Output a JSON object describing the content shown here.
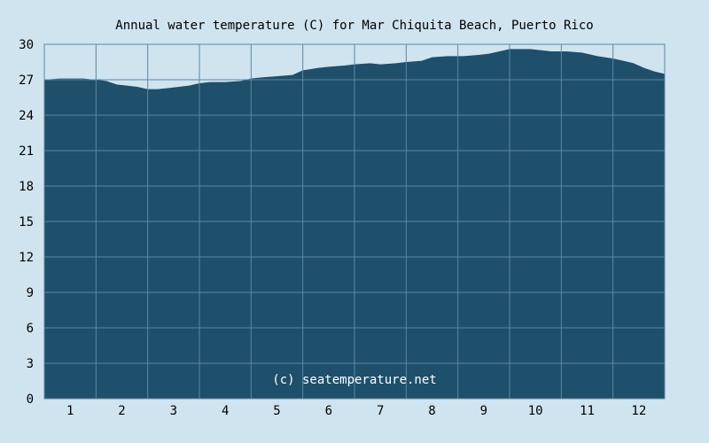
{
  "chart_data": {
    "type": "area",
    "title": "Annual water temperature (C) for Mar Chiquita Beach, Puerto Rico",
    "watermark": "(c) seatemperature.net",
    "xlabel": "",
    "ylabel": "",
    "x_ticks": [
      "1",
      "2",
      "3",
      "4",
      "5",
      "6",
      "7",
      "8",
      "9",
      "10",
      "11",
      "12"
    ],
    "y_ticks": [
      0,
      3,
      6,
      9,
      12,
      15,
      18,
      21,
      24,
      27,
      30
    ],
    "ylim": [
      0,
      30
    ],
    "xlim": [
      0.5,
      12.5
    ],
    "grid": true,
    "colors": {
      "background": "#cfe4ef",
      "fill": "#1e4f6b",
      "grid": "#5d87a1",
      "border": "#5d87a1"
    },
    "series": [
      {
        "x": [
          0.5,
          0.8,
          1.0,
          1.25,
          1.5,
          1.7,
          1.9,
          2.1,
          2.3,
          2.5,
          2.7,
          2.9,
          3.1,
          3.3,
          3.5,
          3.7,
          4.0,
          4.3,
          4.5,
          4.7,
          5.0,
          5.3,
          5.5,
          5.8,
          6.0,
          6.3,
          6.5,
          6.8,
          7.0,
          7.3,
          7.5,
          7.8,
          8.0,
          8.3,
          8.6,
          8.9,
          9.1,
          9.3,
          9.5,
          9.7,
          9.9,
          10.1,
          10.3,
          10.6,
          10.9,
          11.2,
          11.5,
          11.7,
          11.9,
          12.1,
          12.3,
          12.5
        ],
        "y": [
          27.0,
          27.1,
          27.1,
          27.1,
          27.0,
          26.9,
          26.6,
          26.5,
          26.4,
          26.2,
          26.2,
          26.3,
          26.4,
          26.5,
          26.7,
          26.8,
          26.8,
          26.9,
          27.1,
          27.2,
          27.3,
          27.4,
          27.8,
          28.0,
          28.1,
          28.2,
          28.3,
          28.4,
          28.3,
          28.4,
          28.5,
          28.6,
          28.9,
          29.0,
          29.0,
          29.1,
          29.2,
          29.4,
          29.6,
          29.6,
          29.6,
          29.5,
          29.4,
          29.4,
          29.3,
          29.0,
          28.8,
          28.6,
          28.4,
          28.0,
          27.7,
          27.5
        ]
      }
    ]
  }
}
